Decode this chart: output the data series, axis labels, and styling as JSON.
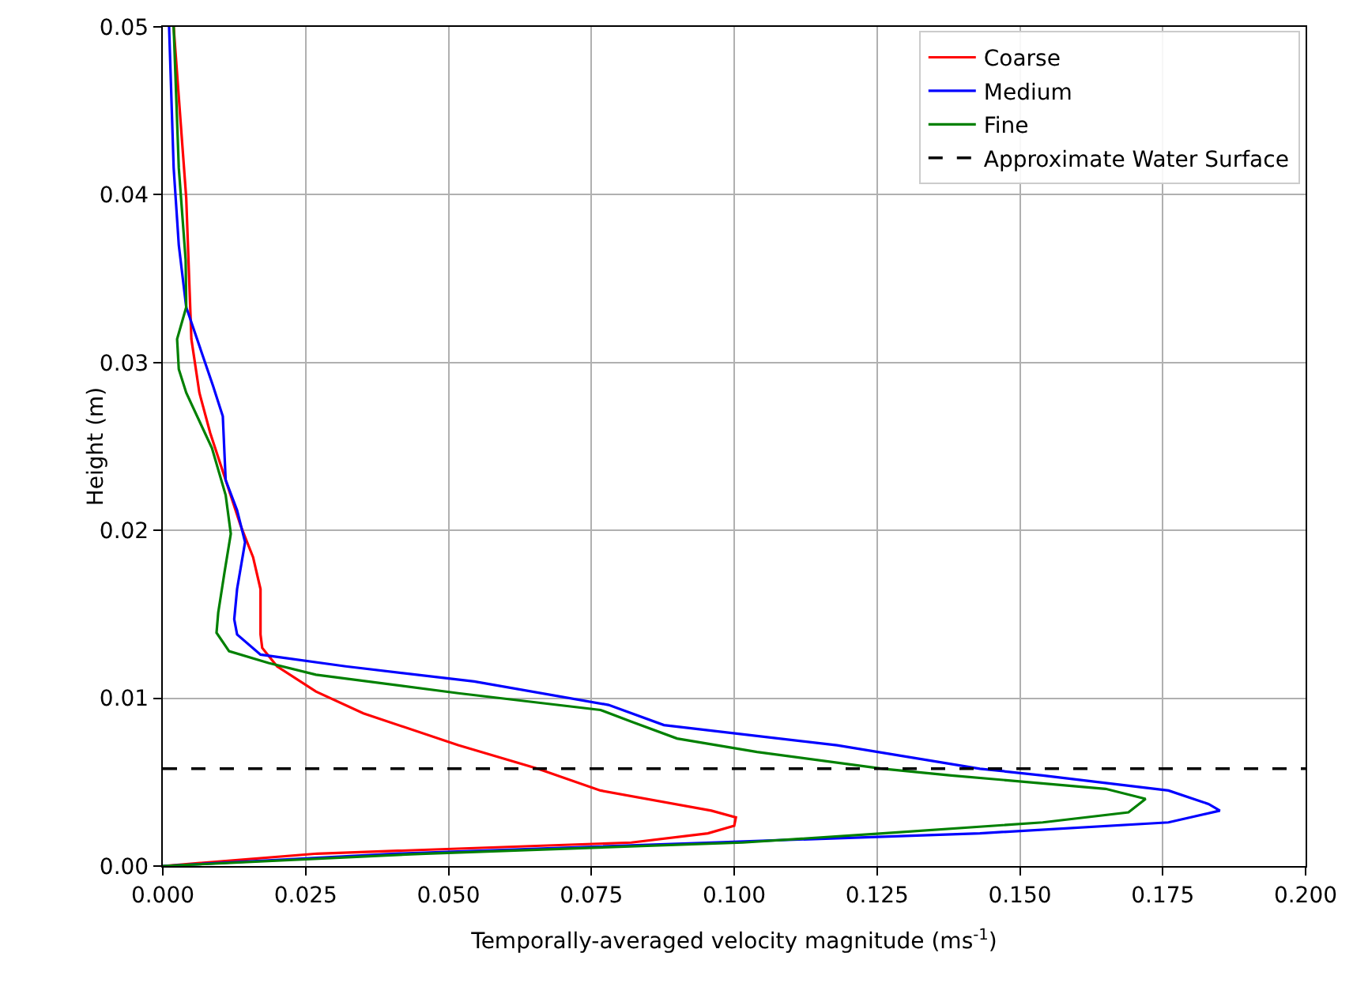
{
  "chart_data": {
    "type": "line",
    "xlabel": "Temporally-averaged velocity magnitude (ms$^{-1}$)",
    "ylabel": "Height (m)",
    "xlim": [
      0,
      0.2
    ],
    "ylim": [
      0,
      0.05
    ],
    "xticks": [
      {
        "value": 0,
        "label": "0.000"
      },
      {
        "value": 0.025,
        "label": "0.025"
      },
      {
        "value": 0.05,
        "label": "0.050"
      },
      {
        "value": 0.075,
        "label": "0.075"
      },
      {
        "value": 0.1,
        "label": "0.100"
      },
      {
        "value": 0.125,
        "label": "0.125"
      },
      {
        "value": 0.15,
        "label": "0.150"
      },
      {
        "value": 0.175,
        "label": "0.175"
      },
      {
        "value": 0.2,
        "label": "0.200"
      }
    ],
    "yticks": [
      {
        "value": 0,
        "label": "0.00"
      },
      {
        "value": 0.01,
        "label": "0.01"
      },
      {
        "value": 0.02,
        "label": "0.02"
      },
      {
        "value": 0.03,
        "label": "0.03"
      },
      {
        "value": 0.04,
        "label": "0.04"
      },
      {
        "value": 0.05,
        "label": "0.05"
      }
    ],
    "grid": true,
    "legend": "top right",
    "marker": "none",
    "line_style": "solid",
    "series": [
      {
        "name": "Coarse",
        "color": "#ff0000",
        "x": [
          0,
          0.027,
          0.082,
          0.0954,
          0.1,
          0.1003,
          0.096,
          0.0766,
          0.0656,
          0.0517,
          0.0351,
          0.0268,
          0.02,
          0.0174,
          0.0171,
          0.0171,
          0.0158,
          0.0136,
          0.011,
          0.0083,
          0.0064,
          0.005,
          0.0047,
          0.0041,
          0.0033,
          0.0019
        ],
        "values": [
          0,
          0.00074,
          0.0014,
          0.00195,
          0.0024,
          0.0029,
          0.0033,
          0.0045,
          0.0058,
          0.0072,
          0.0091,
          0.0104,
          0.0119,
          0.013,
          0.0138,
          0.0165,
          0.0184,
          0.0203,
          0.023,
          0.0258,
          0.0282,
          0.0314,
          0.0342,
          0.0398,
          0.0435,
          0.05
        ]
      },
      {
        "name": "Medium",
        "color": "#0000ff",
        "x": [
          0,
          0.0407,
          0.096,
          0.143,
          0.176,
          0.185,
          0.183,
          0.176,
          0.154,
          0.143,
          0.118,
          0.0877,
          0.078,
          0.0545,
          0.032,
          0.0171,
          0.013,
          0.0125,
          0.013,
          0.0144,
          0.013,
          0.011,
          0.0105,
          0.0088,
          0.0069,
          0.0041,
          0.0028,
          0.0019,
          0.0011
        ],
        "values": [
          0,
          0.00074,
          0.0014,
          0.00195,
          0.0026,
          0.0033,
          0.0037,
          0.0045,
          0.0054,
          0.0058,
          0.0072,
          0.0084,
          0.0096,
          0.011,
          0.0119,
          0.0126,
          0.0138,
          0.0147,
          0.0165,
          0.0193,
          0.0212,
          0.023,
          0.0268,
          0.0286,
          0.0305,
          0.0333,
          0.037,
          0.0416,
          0.05
        ]
      },
      {
        "name": "Fine",
        "color": "#008000",
        "x": [
          0,
          0.046,
          0.1015,
          0.126,
          0.154,
          0.169,
          0.172,
          0.165,
          0.138,
          0.126,
          0.104,
          0.09,
          0.082,
          0.0766,
          0.0517,
          0.0268,
          0.0185,
          0.0116,
          0.0094,
          0.0097,
          0.0108,
          0.0119,
          0.011,
          0.0086,
          0.0041,
          0.0028,
          0.0025,
          0.0041,
          0.004,
          0.0028,
          0.0019
        ],
        "values": [
          0,
          0.00074,
          0.0014,
          0.00195,
          0.0026,
          0.0032,
          0.004,
          0.0046,
          0.0054,
          0.0058,
          0.0068,
          0.0076,
          0.0086,
          0.0093,
          0.0103,
          0.0114,
          0.0121,
          0.0128,
          0.0139,
          0.0151,
          0.0175,
          0.0198,
          0.0221,
          0.0249,
          0.0282,
          0.0296,
          0.0314,
          0.0333,
          0.0361,
          0.0416,
          0.05
        ]
      }
    ],
    "ref_lines": [
      {
        "axis": "y",
        "value": 0.0058,
        "label": "Approximate Water Surface",
        "color": "#000000",
        "line_style": "dashed"
      }
    ]
  }
}
